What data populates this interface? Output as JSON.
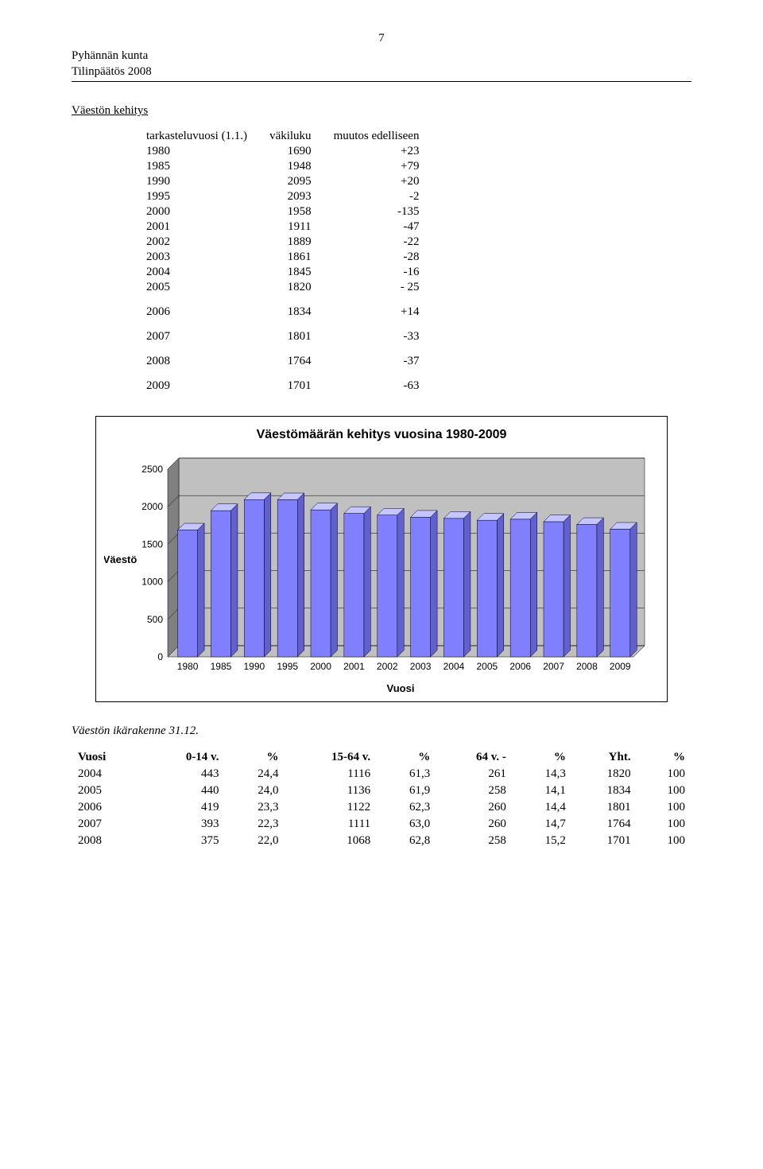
{
  "page_number": "7",
  "header": {
    "line1": "Pyhännän kunta",
    "line2": "Tilinpäätös 2008"
  },
  "section1": {
    "title": "Väestön kehitys",
    "col_headers": [
      "tarkasteluvuosi (1.1.)",
      "väkiluku",
      "muutos edelliseen"
    ],
    "rows": [
      {
        "year": "1980",
        "pop": "1690",
        "delta": "+23"
      },
      {
        "year": "1985",
        "pop": "1948",
        "delta": "+79"
      },
      {
        "year": "1990",
        "pop": "2095",
        "delta": "+20"
      },
      {
        "year": "1995",
        "pop": "2093",
        "delta": "-2"
      },
      {
        "year": "2000",
        "pop": "1958",
        "delta": "-135"
      },
      {
        "year": "2001",
        "pop": "1911",
        "delta": "-47"
      },
      {
        "year": "2002",
        "pop": "1889",
        "delta": "-22"
      },
      {
        "year": "2003",
        "pop": "1861",
        "delta": "-28"
      },
      {
        "year": "2004",
        "pop": "1845",
        "delta": "-16"
      },
      {
        "year": "2005",
        "pop": "1820",
        "delta": "- 25"
      }
    ],
    "rows_spaced": [
      {
        "year": "2006",
        "pop": "1834",
        "delta": "+14"
      },
      {
        "year": "2007",
        "pop": "1801",
        "delta": "-33"
      },
      {
        "year": "2008",
        "pop": "1764",
        "delta": "-37"
      },
      {
        "year": "2009",
        "pop": "1701",
        "delta": "-63"
      }
    ]
  },
  "chart": {
    "title": "Väestömäärän kehitys vuosina 1980-2009",
    "type": "3d-bar",
    "y_axis_label": "Väestö",
    "x_axis_label": "Vuosi",
    "ylim": [
      0,
      2500
    ],
    "ytick_step": 500,
    "categories": [
      "1980",
      "1985",
      "1990",
      "1995",
      "2000",
      "2001",
      "2002",
      "2003",
      "2004",
      "2005",
      "2006",
      "2007",
      "2008",
      "2009"
    ],
    "values": [
      1690,
      1948,
      2095,
      2093,
      1958,
      1911,
      1889,
      1861,
      1845,
      1820,
      1834,
      1801,
      1764,
      1701
    ],
    "bar_front_color": "#8080ff",
    "bar_top_color": "#c5c5ff",
    "bar_side_color": "#6060d0",
    "wall_color": "#c0c0c0",
    "wall_side_color": "#808080",
    "grid_color": "#000000",
    "background_color": "#ffffff",
    "tick_font_family": "Arial",
    "tick_fontsize": 12,
    "label_fontsize": 13,
    "title_fontsize": 16
  },
  "section2": {
    "subtitle": "Väestön ikärakenne 31.12.",
    "col_headers": [
      "Vuosi",
      "0-14 v.",
      "%",
      "15-64 v.",
      "%",
      "64 v. -",
      "%",
      "Yht.",
      "%"
    ],
    "rows": [
      [
        "2004",
        "443",
        "24,4",
        "1116",
        "61,3",
        "261",
        "14,3",
        "1820",
        "100"
      ],
      [
        "2005",
        "440",
        "24,0",
        "1136",
        "61,9",
        "258",
        "14,1",
        "1834",
        "100"
      ],
      [
        "2006",
        "419",
        "23,3",
        "1122",
        "62,3",
        "260",
        "14,4",
        "1801",
        "100"
      ],
      [
        "2007",
        "393",
        "22,3",
        "1111",
        "63,0",
        "260",
        "14,7",
        "1764",
        "100"
      ],
      [
        "2008",
        "375",
        "22,0",
        "1068",
        "62,8",
        "258",
        "15,2",
        "1701",
        "100"
      ]
    ]
  }
}
